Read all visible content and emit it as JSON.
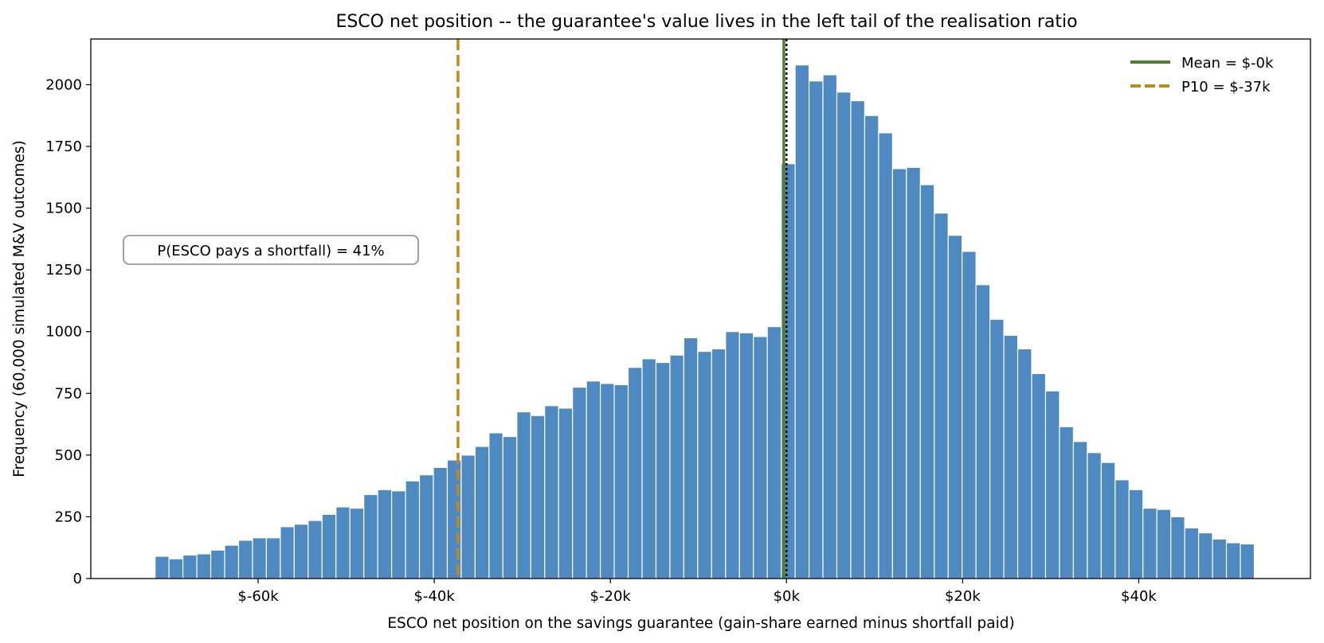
{
  "chart_data": {
    "type": "bar",
    "title": "ESCO net position -- the guarantee's value lives in the left tail of the realisation ratio",
    "xlabel": "ESCO net position on the savings guarantee  (gain-share earned minus shortfall paid)",
    "ylabel": "Frequency  (60,000 simulated M&V outcomes)",
    "xlim": [
      -79000,
      59500
    ],
    "ylim": [
      0,
      2185
    ],
    "x_ticks": [
      {
        "value": -60000,
        "label": "$-60k"
      },
      {
        "value": -40000,
        "label": "$-40k"
      },
      {
        "value": -20000,
        "label": "$-20k"
      },
      {
        "value": 0,
        "label": "$0k"
      },
      {
        "value": 20000,
        "label": "$20k"
      },
      {
        "value": 40000,
        "label": "$40k"
      }
    ],
    "y_ticks": [
      0,
      250,
      500,
      750,
      1000,
      1250,
      1500,
      1750,
      2000
    ],
    "bin_start": -71700,
    "bin_width": 1580,
    "values": [
      90,
      80,
      95,
      100,
      115,
      135,
      155,
      165,
      165,
      210,
      220,
      235,
      260,
      290,
      285,
      340,
      360,
      355,
      395,
      420,
      450,
      480,
      500,
      535,
      590,
      575,
      675,
      660,
      700,
      690,
      775,
      800,
      790,
      785,
      855,
      890,
      875,
      905,
      975,
      920,
      930,
      1000,
      995,
      980,
      1020,
      1680,
      2080,
      2015,
      2040,
      1970,
      1935,
      1875,
      1805,
      1660,
      1665,
      1595,
      1480,
      1390,
      1325,
      1190,
      1050,
      985,
      930,
      830,
      760,
      615,
      555,
      510,
      470,
      400,
      360,
      285,
      280,
      250,
      205,
      185,
      160,
      145,
      140
    ],
    "bar_color": "#4e89c2",
    "zero_line": {
      "value": 0,
      "color": "#000000",
      "style": "dotted"
    },
    "mean_line": {
      "value": -300,
      "color": "#4f7f35",
      "label": "Mean = $-0k"
    },
    "p10_line": {
      "value": -37300,
      "color": "#c08b14",
      "label": "P10 = $-37k"
    },
    "legend_position": "top-right",
    "annotation": "P(ESCO pays a shortfall) = 41%",
    "grid": false
  }
}
